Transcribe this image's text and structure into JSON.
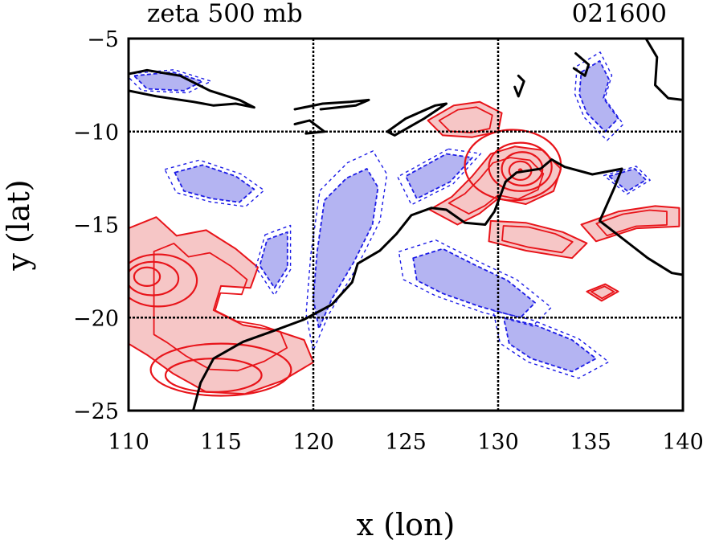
{
  "figure": {
    "title_left": "zeta 500 mb",
    "title_right": "021600",
    "xlabel": "x (lon)",
    "ylabel": "y (lat)"
  },
  "colors": {
    "positive_fill": "#f6c6c6",
    "positive_contour": "#e8141a",
    "negative_fill": "#b4b4f2",
    "negative_contour": "#1c1ce6",
    "coastline": "#000000",
    "grid": "#000000"
  },
  "chart_data": {
    "type": "contour_map",
    "field": "zeta 500 mb",
    "time_label": "021600",
    "xlim": [
      110,
      140
    ],
    "ylim": [
      -25,
      -5
    ],
    "x_ticks": [
      110,
      115,
      120,
      125,
      130,
      135,
      140
    ],
    "x_tick_labels": [
      "110",
      "115",
      "120",
      "125",
      "130",
      "135",
      "140"
    ],
    "y_ticks": [
      -5,
      -10,
      -15,
      -20,
      -25
    ],
    "y_tick_labels": [
      "−5",
      "−10",
      "−15",
      "−20",
      "−25"
    ],
    "grid_lon": [
      120,
      130
    ],
    "grid_lat": [
      -10,
      -20
    ],
    "cyclone_center": {
      "lon": 131.2,
      "lat": -12.1
    },
    "positive_regions": [
      {
        "name": "cyclone-core",
        "pts": [
          [
            126.3,
            -14.2
          ],
          [
            127.5,
            -13.5
          ],
          [
            128.6,
            -12.4
          ],
          [
            129.6,
            -11.2
          ],
          [
            130.9,
            -10.8
          ],
          [
            132.4,
            -11.0
          ],
          [
            133.4,
            -12.0
          ],
          [
            133.0,
            -13.2
          ],
          [
            131.5,
            -13.9
          ],
          [
            130.0,
            -13.6
          ],
          [
            129.0,
            -14.4
          ],
          [
            127.8,
            -15.0
          ]
        ]
      },
      {
        "name": "cyclone-arm-north",
        "pts": [
          [
            126.2,
            -9.4
          ],
          [
            127.6,
            -8.6
          ],
          [
            129.0,
            -8.4
          ],
          [
            130.2,
            -9.0
          ],
          [
            130.0,
            -10.0
          ],
          [
            128.6,
            -10.3
          ],
          [
            127.0,
            -10.2
          ]
        ]
      },
      {
        "name": "cyclone-tail-south",
        "pts": [
          [
            129.6,
            -14.8
          ],
          [
            131.5,
            -14.9
          ],
          [
            133.5,
            -15.4
          ],
          [
            134.8,
            -16.0
          ],
          [
            134.0,
            -16.8
          ],
          [
            131.5,
            -16.4
          ],
          [
            129.5,
            -15.9
          ]
        ]
      },
      {
        "name": "tail-east",
        "pts": [
          [
            134.5,
            -15.0
          ],
          [
            136.5,
            -14.3
          ],
          [
            138.5,
            -14.0
          ],
          [
            139.8,
            -14.1
          ],
          [
            139.8,
            -15.1
          ],
          [
            137.5,
            -15.2
          ],
          [
            135.3,
            -15.9
          ]
        ]
      },
      {
        "name": "west-trough",
        "pts": [
          [
            110.0,
            -15.2
          ],
          [
            111.5,
            -14.6
          ],
          [
            112.6,
            -15.6
          ],
          [
            114.2,
            -15.3
          ],
          [
            115.8,
            -16.3
          ],
          [
            117.0,
            -17.3
          ],
          [
            116.6,
            -18.4
          ],
          [
            115.0,
            -18.3
          ],
          [
            114.6,
            -19.6
          ],
          [
            116.2,
            -20.4
          ],
          [
            118.0,
            -20.7
          ],
          [
            119.5,
            -21.2
          ],
          [
            120.0,
            -22.4
          ],
          [
            118.3,
            -23.4
          ],
          [
            116.3,
            -24.1
          ],
          [
            114.2,
            -24.0
          ],
          [
            112.4,
            -23.0
          ],
          [
            111.0,
            -22.0
          ],
          [
            110.0,
            -21.4
          ]
        ]
      },
      {
        "name": "small-east",
        "pts": [
          [
            134.8,
            -18.6
          ],
          [
            135.8,
            -18.2
          ],
          [
            136.5,
            -18.6
          ],
          [
            135.6,
            -19.1
          ]
        ]
      }
    ],
    "negative_regions": [
      {
        "name": "west-blob",
        "pts": [
          [
            112.5,
            -12.2
          ],
          [
            114.0,
            -11.8
          ],
          [
            115.8,
            -12.4
          ],
          [
            116.8,
            -13.1
          ],
          [
            116.0,
            -13.8
          ],
          [
            114.5,
            -13.6
          ],
          [
            113.0,
            -13.2
          ]
        ]
      },
      {
        "name": "central-band",
        "pts": [
          [
            120.6,
            -13.7
          ],
          [
            121.8,
            -12.5
          ],
          [
            122.9,
            -12.0
          ],
          [
            123.5,
            -13.0
          ],
          [
            123.2,
            -15.0
          ],
          [
            122.2,
            -17.0
          ],
          [
            121.0,
            -19.0
          ],
          [
            120.3,
            -20.6
          ],
          [
            120.0,
            -19.0
          ],
          [
            120.2,
            -16.5
          ]
        ]
      },
      {
        "name": "west-mid",
        "pts": [
          [
            117.5,
            -15.8
          ],
          [
            118.6,
            -15.4
          ],
          [
            118.6,
            -17.3
          ],
          [
            117.9,
            -18.4
          ],
          [
            117.1,
            -17.2
          ]
        ]
      },
      {
        "name": "north-band",
        "pts": [
          [
            127.2,
            -11.2
          ],
          [
            128.6,
            -11.4
          ],
          [
            127.4,
            -12.7
          ],
          [
            125.6,
            -13.6
          ],
          [
            125.0,
            -12.4
          ]
        ]
      },
      {
        "name": "south-band",
        "pts": [
          [
            125.4,
            -16.8
          ],
          [
            127.0,
            -16.3
          ],
          [
            128.8,
            -17.2
          ],
          [
            130.5,
            -18.0
          ],
          [
            132.0,
            -19.2
          ],
          [
            131.2,
            -20.0
          ],
          [
            129.0,
            -19.4
          ],
          [
            127.0,
            -18.7
          ],
          [
            125.6,
            -18.0
          ]
        ]
      },
      {
        "name": "southeast-band",
        "pts": [
          [
            130.3,
            -20.0
          ],
          [
            132.0,
            -20.4
          ],
          [
            134.0,
            -21.2
          ],
          [
            135.3,
            -22.2
          ],
          [
            134.0,
            -22.9
          ],
          [
            131.8,
            -22.2
          ],
          [
            130.6,
            -21.4
          ]
        ]
      },
      {
        "name": "northeast-arc",
        "pts": [
          [
            134.5,
            -6.8
          ],
          [
            135.5,
            -6.2
          ],
          [
            136.0,
            -7.2
          ],
          [
            135.7,
            -8.2
          ],
          [
            136.5,
            -9.3
          ],
          [
            135.8,
            -10.0
          ],
          [
            134.8,
            -9.0
          ],
          [
            134.4,
            -8.0
          ]
        ]
      },
      {
        "name": "east-strip",
        "pts": [
          [
            136.0,
            -12.4
          ],
          [
            137.4,
            -12.0
          ],
          [
            138.0,
            -12.6
          ],
          [
            137.0,
            -13.2
          ]
        ]
      },
      {
        "name": "north-west-strip",
        "pts": [
          [
            110.3,
            -7.0
          ],
          [
            112.4,
            -6.8
          ],
          [
            114.0,
            -7.3
          ],
          [
            113.0,
            -7.8
          ],
          [
            111.0,
            -7.7
          ]
        ]
      }
    ],
    "coastlines": [
      {
        "name": "australia-northwest",
        "pts": [
          [
            113.5,
            -25.0
          ],
          [
            113.9,
            -23.5
          ],
          [
            114.6,
            -22.2
          ],
          [
            116.2,
            -21.3
          ],
          [
            117.6,
            -20.8
          ],
          [
            119.5,
            -20.1
          ],
          [
            121.0,
            -19.3
          ],
          [
            122.1,
            -18.1
          ],
          [
            122.4,
            -17.1
          ],
          [
            123.6,
            -16.4
          ],
          [
            124.5,
            -15.5
          ],
          [
            125.3,
            -14.5
          ],
          [
            126.4,
            -14.1
          ],
          [
            127.2,
            -14.2
          ],
          [
            128.2,
            -14.9
          ],
          [
            129.3,
            -15.0
          ],
          [
            129.8,
            -14.3
          ],
          [
            130.4,
            -12.7
          ],
          [
            131.0,
            -12.2
          ],
          [
            132.3,
            -12.0
          ],
          [
            132.9,
            -11.5
          ],
          [
            133.6,
            -11.9
          ],
          [
            135.1,
            -12.3
          ],
          [
            136.7,
            -12.0
          ],
          [
            136.3,
            -13.0
          ],
          [
            135.5,
            -14.8
          ],
          [
            136.8,
            -15.8
          ],
          [
            138.1,
            -16.8
          ],
          [
            139.4,
            -17.6
          ],
          [
            140.0,
            -17.7
          ]
        ]
      },
      {
        "name": "timor",
        "pts": [
          [
            124.0,
            -10.0
          ],
          [
            125.0,
            -9.3
          ],
          [
            126.6,
            -8.6
          ],
          [
            127.2,
            -8.5
          ],
          [
            126.0,
            -9.3
          ],
          [
            124.4,
            -10.2
          ],
          [
            124.0,
            -10.0
          ]
        ]
      },
      {
        "name": "flores-sumbawa",
        "pts": [
          [
            119.0,
            -8.8
          ],
          [
            120.5,
            -8.5
          ],
          [
            122.0,
            -8.4
          ],
          [
            123.0,
            -8.3
          ],
          [
            122.3,
            -8.6
          ],
          [
            120.4,
            -8.8
          ]
        ]
      },
      {
        "name": "java-bali-lombok",
        "pts": [
          [
            110.0,
            -7.8
          ],
          [
            111.5,
            -8.1
          ],
          [
            113.5,
            -8.4
          ],
          [
            114.6,
            -8.6
          ],
          [
            115.8,
            -8.5
          ],
          [
            116.8,
            -8.7
          ],
          [
            116.0,
            -8.3
          ],
          [
            114.4,
            -7.8
          ],
          [
            112.8,
            -7.0
          ],
          [
            111.0,
            -6.7
          ],
          [
            110.0,
            -6.9
          ]
        ]
      },
      {
        "name": "sumba",
        "pts": [
          [
            119.0,
            -9.6
          ],
          [
            119.8,
            -9.4
          ],
          [
            120.6,
            -10.0
          ],
          [
            119.6,
            -10.1
          ]
        ]
      },
      {
        "name": "tanimbar",
        "pts": [
          [
            131.1,
            -7.0
          ],
          [
            131.4,
            -7.3
          ],
          [
            131.1,
            -8.1
          ],
          [
            130.9,
            -7.6
          ]
        ]
      },
      {
        "name": "new-guinea-south",
        "pts": [
          [
            138.0,
            -5.0
          ],
          [
            138.6,
            -6.0
          ],
          [
            138.5,
            -7.5
          ],
          [
            139.2,
            -8.2
          ],
          [
            140.0,
            -8.3
          ]
        ]
      },
      {
        "name": "aru",
        "pts": [
          [
            134.2,
            -5.8
          ],
          [
            134.9,
            -6.4
          ],
          [
            134.7,
            -7.0
          ],
          [
            134.1,
            -6.6
          ]
        ]
      }
    ],
    "positive_contours": [
      {
        "name": "cyclone-ring-1",
        "cx": 131.2,
        "cy": -12.1,
        "rx": 0.6,
        "ry": 0.5
      },
      {
        "name": "cyclone-ring-2",
        "cx": 131.3,
        "cy": -12.0,
        "rx": 1.1,
        "ry": 0.9
      },
      {
        "name": "cyclone-ring-3",
        "cx": 131.2,
        "cy": -11.9,
        "rx": 1.7,
        "ry": 1.3
      },
      {
        "name": "cyclone-ring-4",
        "cx": 130.8,
        "cy": -11.8,
        "rx": 2.6,
        "ry": 1.9
      },
      {
        "name": "west-vortex-1",
        "cx": 111.0,
        "cy": -17.8,
        "rx": 0.7,
        "ry": 0.5
      },
      {
        "name": "west-vortex-2",
        "cx": 111.3,
        "cy": -17.9,
        "rx": 1.4,
        "ry": 0.9
      },
      {
        "name": "west-vortex-3",
        "cx": 111.6,
        "cy": -18.0,
        "rx": 2.1,
        "ry": 1.4
      },
      {
        "name": "swirl-south-1",
        "cx": 115.0,
        "cy": -22.8,
        "rx": 3.8,
        "ry": 1.4
      },
      {
        "name": "swirl-south-2",
        "cx": 114.6,
        "cy": -23.1,
        "rx": 2.6,
        "ry": 0.9
      }
    ]
  }
}
